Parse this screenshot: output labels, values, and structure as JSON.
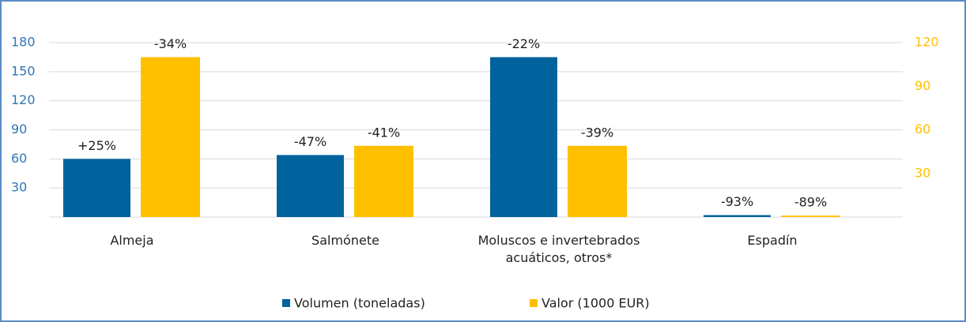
{
  "chart_data": {
    "type": "bar",
    "categories": [
      "Almeja",
      "Salmónete",
      "Moluscos e invertebrados acuáticos, otros*",
      "Espadín"
    ],
    "series": [
      {
        "name": "Volumen (toneladas)",
        "color": "#00639e",
        "values": [
          60,
          64,
          165,
          2
        ],
        "value_labels": [
          "+25%",
          "-47%",
          "-22%",
          "-93%"
        ]
      },
      {
        "name": "Valor (1000 EUR)",
        "color": "#ffc000",
        "axis": "y2",
        "values": [
          110,
          49,
          49,
          1
        ],
        "value_labels": [
          "-34%",
          "-41%",
          "-39%",
          "-89%"
        ]
      }
    ],
    "ylim": [
      0,
      180
    ],
    "yticks": [
      30,
      60,
      90,
      120,
      150,
      180
    ],
    "y2lim": [
      0,
      120
    ],
    "y2ticks": [
      30,
      60,
      90,
      120
    ],
    "grid": true,
    "legend": "bottom"
  }
}
